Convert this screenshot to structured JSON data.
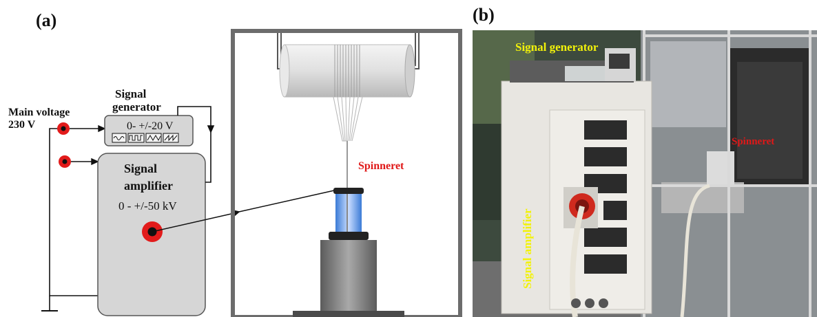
{
  "panel_a": {
    "label": "(a)",
    "main_voltage_line1": "Main voltage",
    "main_voltage_line2": "230 V",
    "generator_line1": "Signal",
    "generator_line2": "generator",
    "generator_range": "0- +/-20 V",
    "amplifier_line1": "Signal",
    "amplifier_line2": "amplifier",
    "amplifier_range": "0 - +/-50 kV",
    "spinneret": "Spinneret"
  },
  "panel_b": {
    "label": "(b)",
    "signal_generator": "Signal generator",
    "signal_amplifier": "Signal amplifier",
    "spinneret": "Spinneret"
  },
  "colors": {
    "terminal_red": "#e21b1b",
    "photo_label_yellow": "#f2f20a",
    "spinneret_red": "#e01818",
    "box_grey": "#d6d6d6"
  }
}
